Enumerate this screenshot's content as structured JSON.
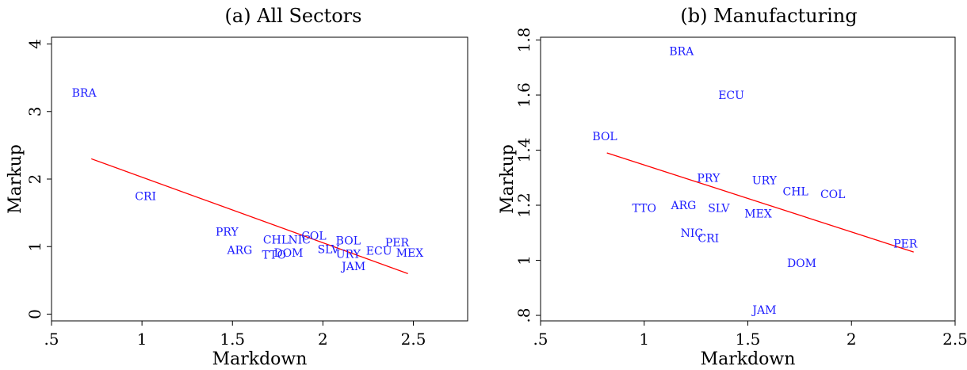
{
  "chart_data": [
    {
      "type": "scatter",
      "title": "(a) All Sectors",
      "xlabel": "Markdown",
      "ylabel": "Markup",
      "xlim": [
        0.5,
        2.8
      ],
      "ylim": [
        -0.1,
        4.1
      ],
      "xticks": [
        0.5,
        1,
        1.5,
        2,
        2.5
      ],
      "xtick_labels": [
        ".5",
        "1",
        "1.5",
        "2",
        "2.5"
      ],
      "yticks": [
        0,
        1,
        2,
        3,
        4
      ],
      "ytick_labels": [
        "0",
        "1",
        "2",
        "3",
        "4"
      ],
      "ytick_rotated": true,
      "marker_color": "#1a1aff",
      "points": [
        {
          "label": "BRA",
          "x": 0.68,
          "y": 3.28
        },
        {
          "label": "CRI",
          "x": 1.02,
          "y": 1.75
        },
        {
          "label": "PRY",
          "x": 1.47,
          "y": 1.22
        },
        {
          "label": "ARG",
          "x": 1.54,
          "y": 0.95
        },
        {
          "label": "CHL",
          "x": 1.74,
          "y": 1.1
        },
        {
          "label": "NIC",
          "x": 1.87,
          "y": 1.1
        },
        {
          "label": "COL",
          "x": 1.95,
          "y": 1.16
        },
        {
          "label": "TTO",
          "x": 1.73,
          "y": 0.88
        },
        {
          "label": "DOM",
          "x": 1.81,
          "y": 0.91
        },
        {
          "label": "SLV",
          "x": 2.03,
          "y": 0.96
        },
        {
          "label": "BOL",
          "x": 2.14,
          "y": 1.09
        },
        {
          "label": "URY",
          "x": 2.14,
          "y": 0.89
        },
        {
          "label": "JAM",
          "x": 2.17,
          "y": 0.71
        },
        {
          "label": "ECU",
          "x": 2.31,
          "y": 0.94
        },
        {
          "label": "PER",
          "x": 2.41,
          "y": 1.06
        },
        {
          "label": "MEX",
          "x": 2.48,
          "y": 0.91
        }
      ],
      "fit_line": {
        "color": "#ff0000",
        "x": [
          0.72,
          2.47
        ],
        "y": [
          2.3,
          0.6
        ]
      }
    },
    {
      "type": "scatter",
      "title": "(b) Manufacturing",
      "xlabel": "Markdown",
      "ylabel": "Markup",
      "xlim": [
        0.5,
        2.5
      ],
      "ylim": [
        0.78,
        1.81
      ],
      "xticks": [
        0.5,
        1,
        1.5,
        2,
        2.5
      ],
      "xtick_labels": [
        ".5",
        "1",
        "1.5",
        "2",
        "2.5"
      ],
      "yticks": [
        0.8,
        1,
        1.2,
        1.4,
        1.6,
        1.8
      ],
      "ytick_labels": [
        ".8",
        "1",
        "1.2",
        "1.4",
        "1.6",
        "1.8"
      ],
      "ytick_rotated": true,
      "marker_color": "#1a1aff",
      "points": [
        {
          "label": "BRA",
          "x": 1.18,
          "y": 1.76
        },
        {
          "label": "ECU",
          "x": 1.42,
          "y": 1.6
        },
        {
          "label": "BOL",
          "x": 0.81,
          "y": 1.45
        },
        {
          "label": "PRY",
          "x": 1.31,
          "y": 1.3
        },
        {
          "label": "URY",
          "x": 1.58,
          "y": 1.29
        },
        {
          "label": "CHL",
          "x": 1.73,
          "y": 1.25
        },
        {
          "label": "COL",
          "x": 1.91,
          "y": 1.24
        },
        {
          "label": "TTO",
          "x": 1.0,
          "y": 1.19
        },
        {
          "label": "ARG",
          "x": 1.19,
          "y": 1.2
        },
        {
          "label": "SLV",
          "x": 1.36,
          "y": 1.19
        },
        {
          "label": "MEX",
          "x": 1.55,
          "y": 1.17
        },
        {
          "label": "NIC",
          "x": 1.23,
          "y": 1.1
        },
        {
          "label": "CRI",
          "x": 1.31,
          "y": 1.08
        },
        {
          "label": "PER",
          "x": 2.26,
          "y": 1.06
        },
        {
          "label": "DOM",
          "x": 1.76,
          "y": 0.99
        },
        {
          "label": "JAM",
          "x": 1.58,
          "y": 0.82
        }
      ],
      "fit_line": {
        "color": "#ff0000",
        "x": [
          0.82,
          2.3
        ],
        "y": [
          1.39,
          1.03
        ]
      }
    }
  ]
}
